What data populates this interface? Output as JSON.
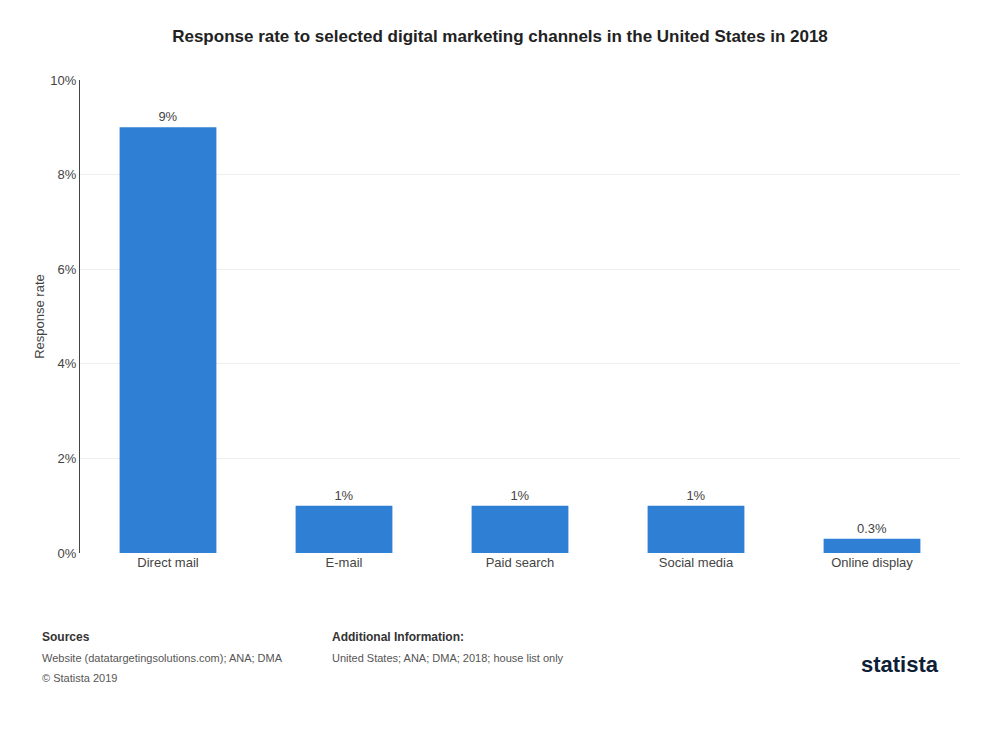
{
  "chart_data": {
    "type": "bar",
    "title": "Response rate to selected digital marketing channels in the United States in 2018",
    "categories": [
      "Direct mail",
      "E-mail",
      "Paid search",
      "Social media",
      "Online display"
    ],
    "values": [
      9,
      1,
      1,
      1,
      0.3
    ],
    "value_labels": [
      "9%",
      "1%",
      "1%",
      "1%",
      "0.3%"
    ],
    "data_labels": true,
    "color": "#2f7fd4",
    "ylabel": "Response rate",
    "ylim": [
      0,
      10
    ],
    "yticks": [
      {
        "value": 0,
        "label": "0%"
      },
      {
        "value": 2,
        "label": "2%"
      },
      {
        "value": 4,
        "label": "4%"
      },
      {
        "value": 6,
        "label": "6%"
      },
      {
        "value": 8,
        "label": "8%"
      },
      {
        "value": 10,
        "label": "10%"
      }
    ],
    "grid": true,
    "annotations": [
      "Sources",
      "Website (datatargetingsolutions.com); ANA; DMA",
      "© Statista 2019",
      "Additional Information:",
      "United States; ANA; DMA; 2018; house list only",
      "statista"
    ]
  }
}
